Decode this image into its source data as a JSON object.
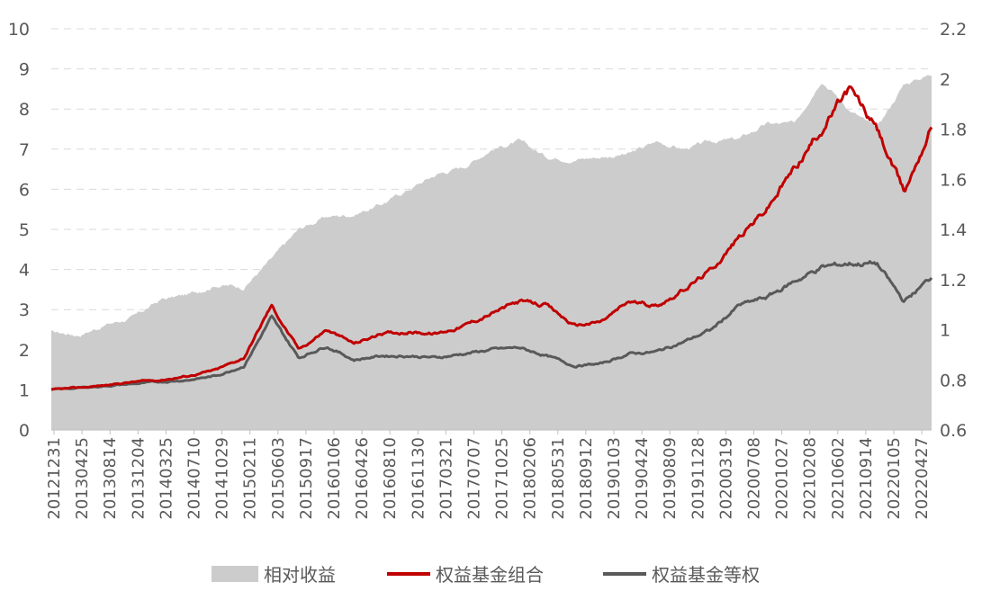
{
  "chart_data": {
    "type": "line",
    "title": "",
    "xlabel": "",
    "ylabel": "",
    "y_left": {
      "min": 0,
      "max": 10,
      "ticks": [
        "0",
        "1",
        "2",
        "3",
        "4",
        "5",
        "6",
        "7",
        "8",
        "9",
        "10"
      ]
    },
    "y_right": {
      "min": 0.6,
      "max": 2.2,
      "ticks": [
        "0.6",
        "0.8",
        "1",
        "1.2",
        "1.4",
        "1.6",
        "1.8",
        "2",
        "2.2"
      ]
    },
    "grid": "horizontal-dashed",
    "legend_position": "bottom",
    "x_ticks": [
      "20121231",
      "20130425",
      "20130814",
      "20131204",
      "20140325",
      "20140710",
      "20141029",
      "20150211",
      "20150603",
      "20150917",
      "20160106",
      "20160426",
      "20160810",
      "20161130",
      "20170321",
      "20170707",
      "20171025",
      "20180206",
      "20180531",
      "20180912",
      "20190103",
      "20190424",
      "20190809",
      "20191128",
      "20200319",
      "20200708",
      "20201027",
      "20210208",
      "20210602",
      "20210914",
      "20220105",
      "20220427"
    ],
    "series": [
      {
        "name": "相对收益",
        "kind": "area",
        "axis": "right",
        "color": "#cccccc",
        "values": [
          0.99,
          0.98,
          1.02,
          1.05,
          1.12,
          1.14,
          1.18,
          1.17,
          1.28,
          1.4,
          1.45,
          1.46,
          1.5,
          1.56,
          1.62,
          1.65,
          1.72,
          1.75,
          1.69,
          1.68,
          1.69,
          1.7,
          1.75,
          1.72,
          1.75,
          1.76,
          1.82,
          1.82,
          2.0,
          1.88,
          1.8,
          1.98,
          2.02
        ]
      },
      {
        "name": "权益基金组合",
        "kind": "line",
        "axis": "left",
        "color": "#c00000",
        "values": [
          1.0,
          1.05,
          1.12,
          1.2,
          1.25,
          1.35,
          1.5,
          1.8,
          3.1,
          2.0,
          2.5,
          2.15,
          2.4,
          2.45,
          2.4,
          2.6,
          2.9,
          3.2,
          3.1,
          2.6,
          2.7,
          3.2,
          3.1,
          3.5,
          4.0,
          4.8,
          5.5,
          6.5,
          7.5,
          8.5,
          7.5,
          5.9,
          7.6
        ]
      },
      {
        "name": "权益基金等权",
        "kind": "line",
        "axis": "left",
        "color": "#595959",
        "values": [
          1.0,
          1.05,
          1.1,
          1.15,
          1.2,
          1.25,
          1.35,
          1.6,
          2.8,
          1.8,
          2.1,
          1.75,
          1.85,
          1.85,
          1.8,
          1.9,
          2.0,
          2.05,
          1.85,
          1.6,
          1.65,
          1.9,
          1.95,
          2.2,
          2.5,
          3.1,
          3.3,
          3.7,
          4.05,
          4.15,
          4.15,
          3.2,
          3.8
        ]
      }
    ]
  }
}
